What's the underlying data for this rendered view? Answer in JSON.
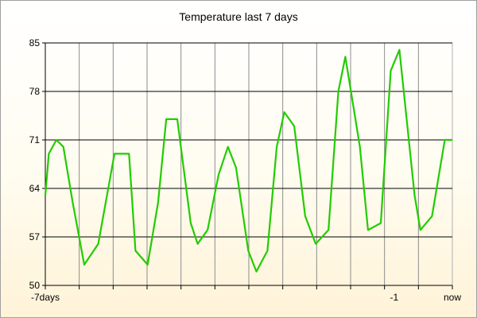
{
  "chart_data": {
    "type": "line",
    "title": "Temperature last 7 days",
    "xlabel": "",
    "ylabel": "",
    "ylim": [
      50,
      85
    ],
    "y_ticks": [
      50,
      57,
      64,
      71,
      78,
      85
    ],
    "x_tick_labels": [
      {
        "x": -7,
        "label": "-7days"
      },
      {
        "x": -1,
        "label": "-1"
      },
      {
        "x": 0,
        "label": "now"
      }
    ],
    "xlim": [
      -7,
      0
    ],
    "grid": true,
    "line_color": "#22cc00",
    "series": [
      {
        "x": [
          -7.0,
          -6.94,
          -6.81,
          -6.69,
          -6.53,
          -6.33,
          -6.09,
          -5.81,
          -5.56,
          -5.45,
          -5.24,
          -5.06,
          -4.92,
          -4.73,
          -4.5,
          -4.38,
          -4.21,
          -4.02,
          -3.86,
          -3.72,
          -3.51,
          -3.37,
          -3.18,
          -3.02,
          -2.89,
          -2.72,
          -2.53,
          -2.35,
          -2.13,
          -1.96,
          -1.84,
          -1.59,
          -1.45,
          -1.23,
          -1.06,
          -0.91,
          -0.65,
          -0.55,
          -0.35,
          -0.13,
          0.0
        ],
        "y": [
          63,
          69,
          71,
          70,
          62,
          53,
          56,
          69,
          69,
          55,
          53,
          62,
          74,
          74,
          59,
          56,
          58,
          66,
          70,
          67,
          55,
          52,
          55,
          70,
          75,
          73,
          60,
          56,
          58,
          78,
          83,
          70,
          58,
          59,
          81,
          84,
          63,
          58,
          60,
          71,
          71
        ]
      }
    ]
  }
}
